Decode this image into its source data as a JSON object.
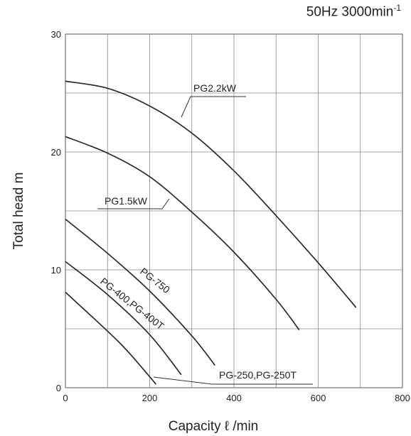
{
  "chart_data": {
    "type": "line",
    "header": "50Hz 3000min",
    "header_sup": "-1",
    "xlabel": "Capacity ℓ /min",
    "ylabel": "Total head m",
    "xlim": [
      0,
      800
    ],
    "ylim": [
      0,
      30
    ],
    "xticks": [
      0,
      200,
      400,
      600,
      800
    ],
    "yticks": [
      0,
      10,
      20,
      30
    ],
    "grid": true,
    "minor_grid_x": 100,
    "minor_grid_y": 5,
    "series": [
      {
        "name": "PG2.2kW",
        "x": [
          0,
          100,
          200,
          300,
          400,
          500,
          600,
          690
        ],
        "y": [
          26,
          25.4,
          23.9,
          21.6,
          18.4,
          14.6,
          10.6,
          6.8
        ]
      },
      {
        "name": "PG1.5kW",
        "x": [
          0,
          100,
          200,
          300,
          400,
          500,
          555
        ],
        "y": [
          21.3,
          19.9,
          17.9,
          14.9,
          11.5,
          7.5,
          4.9
        ]
      },
      {
        "name": "PG-750",
        "x": [
          0,
          100,
          200,
          300,
          355
        ],
        "y": [
          14.3,
          11.4,
          8.2,
          4.4,
          1.9
        ]
      },
      {
        "name": "PG-400,PG-400T",
        "x": [
          0,
          100,
          200,
          275
        ],
        "y": [
          10.7,
          7.9,
          4.5,
          1.1
        ]
      },
      {
        "name": "PG-250,PG-250T",
        "x": [
          0,
          100,
          150,
          215
        ],
        "y": [
          8.1,
          4.8,
          3,
          0.3
        ]
      }
    ]
  }
}
